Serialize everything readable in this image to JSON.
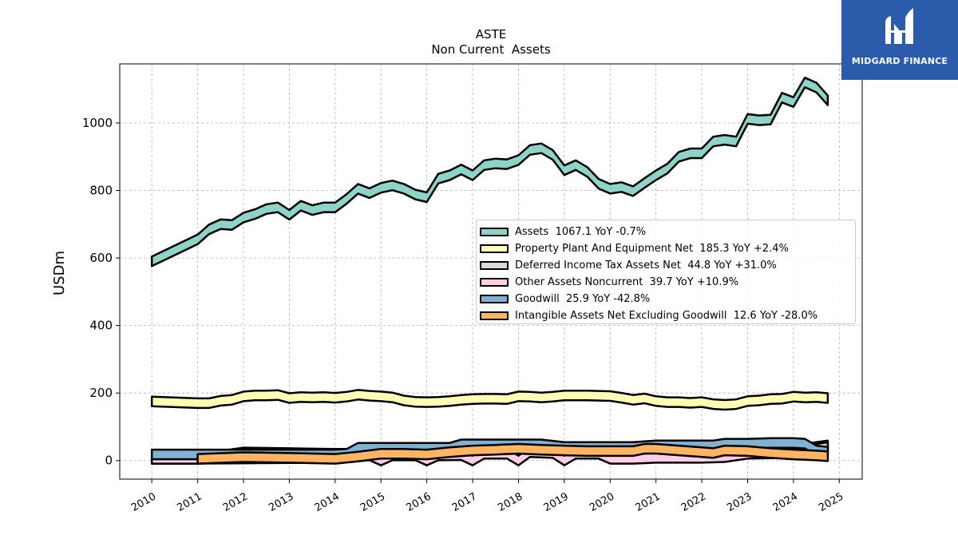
{
  "chart_data": {
    "type": "area",
    "title": "ASTE",
    "subtitle": "Non Current  Assets",
    "ylabel": "USDm",
    "xlabel": "",
    "ylim": [
      -55,
      1175
    ],
    "xlim": [
      2009.3,
      2025.5
    ],
    "yticks": [
      0,
      200,
      400,
      600,
      800,
      1000
    ],
    "xticks": [
      "2010",
      "2011",
      "2012",
      "2013",
      "2014",
      "2015",
      "2016",
      "2017",
      "2018",
      "2019",
      "2020",
      "2021",
      "2022",
      "2023",
      "2024",
      "2025"
    ],
    "grid": true,
    "legend_position": "center-right",
    "series": [
      {
        "name": "Assets",
        "legend": "Assets  1067.1 YoY -0.7%",
        "color": "#8dd3c7",
        "x": [
          2010.0,
          2011.0,
          2011.25,
          2011.5,
          2011.75,
          2012.0,
          2012.25,
          2012.5,
          2012.75,
          2013.0,
          2013.25,
          2013.5,
          2013.75,
          2014.0,
          2014.25,
          2014.5,
          2014.75,
          2015.0,
          2015.25,
          2015.5,
          2015.75,
          2016.0,
          2016.25,
          2016.5,
          2016.75,
          2017.0,
          2017.25,
          2017.5,
          2017.75,
          2018.0,
          2018.25,
          2018.5,
          2018.75,
          2019.0,
          2019.25,
          2019.5,
          2019.75,
          2020.0,
          2020.25,
          2020.5,
          2020.75,
          2021.0,
          2021.25,
          2021.5,
          2021.75,
          2022.0,
          2022.25,
          2022.5,
          2022.75,
          2023.0,
          2023.25,
          2023.5,
          2023.75,
          2024.0,
          2024.25,
          2024.5,
          2024.75
        ],
        "values": [
          590,
          655,
          685,
          700,
          698,
          720,
          730,
          745,
          750,
          728,
          755,
          742,
          750,
          750,
          775,
          805,
          792,
          808,
          815,
          805,
          788,
          780,
          835,
          845,
          862,
          845,
          875,
          880,
          878,
          890,
          920,
          925,
          905,
          860,
          875,
          855,
          820,
          805,
          810,
          798,
          822,
          845,
          865,
          900,
          910,
          910,
          945,
          950,
          945,
          1012,
          1008,
          1010,
          1075,
          1062,
          1120,
          1105,
          1067
        ]
      },
      {
        "name": "Property Plant And Equipment Net",
        "legend": "Property Plant And Equipment Net  185.3 YoY +2.4%",
        "color": "#ffffb3",
        "x": [
          2010.0,
          2011.0,
          2011.25,
          2011.5,
          2011.75,
          2012.0,
          2012.25,
          2012.5,
          2012.75,
          2013.0,
          2013.25,
          2013.5,
          2013.75,
          2014.0,
          2014.25,
          2014.5,
          2014.75,
          2015.0,
          2015.25,
          2015.5,
          2015.75,
          2016.0,
          2016.25,
          2016.5,
          2016.75,
          2017.0,
          2017.25,
          2017.5,
          2017.75,
          2018.0,
          2018.25,
          2018.5,
          2018.75,
          2019.0,
          2019.25,
          2019.5,
          2019.75,
          2020.0,
          2020.25,
          2020.5,
          2020.75,
          2021.0,
          2021.25,
          2021.5,
          2021.75,
          2022.0,
          2022.25,
          2022.5,
          2022.75,
          2023.0,
          2023.25,
          2023.5,
          2023.75,
          2024.0,
          2024.25,
          2024.5,
          2024.75
        ],
        "values": [
          175,
          170,
          170,
          177,
          180,
          190,
          193,
          193,
          194,
          185,
          188,
          187,
          188,
          186,
          189,
          195,
          192,
          190,
          187,
          178,
          174,
          173,
          174,
          176,
          180,
          182,
          183,
          183,
          182,
          190,
          189,
          187,
          189,
          193,
          193,
          193,
          192,
          191,
          186,
          180,
          184,
          176,
          173,
          173,
          171,
          173,
          167,
          165,
          167,
          176,
          178,
          182,
          183,
          189,
          187,
          188,
          185
        ]
      },
      {
        "name": "Deferred Income Tax Assets Net",
        "legend": "Deferred Income Tax Assets Net  44.8 YoY +31.0%",
        "color": "#d9d9d9",
        "x": [
          2010.0,
          2011.0,
          2012.0,
          2013.0,
          2014.0,
          2015.0,
          2016.0,
          2017.0,
          2018.0,
          2019.0,
          2020.0,
          2020.75,
          2021.0,
          2022.0,
          2022.5,
          2023.0,
          2024.0,
          2024.5,
          2024.75
        ],
        "values": [
          5,
          5,
          24,
          22,
          20,
          20,
          20,
          25,
          30,
          28,
          26,
          25,
          30,
          30,
          28,
          28,
          32,
          40,
          44.8
        ]
      },
      {
        "name": "Other Assets Noncurrent",
        "legend": "Other Assets Noncurrent  39.7 YoY +10.9%",
        "color": "#fccde5",
        "x": [
          2010.0,
          2011.0,
          2014.0,
          2014.75,
          2015.0,
          2015.25,
          2015.75,
          2016.0,
          2016.25,
          2016.75,
          2017.0,
          2017.25,
          2017.75,
          2018.0,
          2018.25,
          2018.75,
          2019.0,
          2019.25,
          2019.75,
          2020.0,
          2020.5,
          2021.0,
          2021.5,
          2022.0,
          2022.5,
          2023.0,
          2024.0,
          2024.5,
          2024.75
        ],
        "values": [
          5,
          5,
          8,
          15,
          0,
          15,
          15,
          0,
          15,
          16,
          0,
          20,
          20,
          0,
          25,
          22,
          0,
          20,
          20,
          5,
          5,
          8,
          8,
          8,
          10,
          20,
          22,
          35,
          39.7
        ]
      },
      {
        "name": "Goodwill",
        "legend": "Goodwill  25.9 YoY -42.8%",
        "color": "#80b1d3",
        "x": [
          2010.0,
          2011.0,
          2012.0,
          2013.0,
          2014.0,
          2014.25,
          2014.5,
          2015.0,
          2015.5,
          2016.0,
          2016.5,
          2016.75,
          2017.0,
          2017.5,
          2018.0,
          2018.5,
          2019.0,
          2019.5,
          2020.0,
          2020.5,
          2021.0,
          2021.5,
          2022.0,
          2022.25,
          2022.5,
          2023.0,
          2023.5,
          2024.0,
          2024.25,
          2024.5,
          2024.75
        ],
        "values": [
          18,
          18,
          18,
          18,
          18,
          20,
          38,
          38,
          38,
          38,
          38,
          48,
          48,
          48,
          48,
          48,
          40,
          40,
          40,
          40,
          45,
          45,
          45,
          45,
          50,
          50,
          52,
          52,
          50,
          30,
          25.9
        ]
      },
      {
        "name": "Intangible Assets Net Excluding Goodwill",
        "legend": "Intangible Assets Net Excluding Goodwill  12.6 YoY -28.0%",
        "color": "#fdb462",
        "x": [
          2011.0,
          2012.0,
          2013.0,
          2014.0,
          2014.5,
          2015.0,
          2015.5,
          2016.0,
          2016.5,
          2017.0,
          2017.5,
          2018.0,
          2018.5,
          2019.0,
          2019.5,
          2020.0,
          2020.5,
          2020.75,
          2021.0,
          2021.5,
          2022.0,
          2022.25,
          2022.5,
          2023.0,
          2023.5,
          2024.0,
          2024.5,
          2024.75
        ],
        "values": [
          5,
          10,
          8,
          5,
          12,
          20,
          20,
          18,
          25,
          30,
          32,
          35,
          32,
          30,
          28,
          28,
          28,
          35,
          35,
          30,
          25,
          22,
          30,
          28,
          22,
          18,
          15,
          12.6
        ]
      }
    ]
  },
  "logo": {
    "text": "MIDGARD FINANCE",
    "bg_color": "#2a5cab"
  }
}
